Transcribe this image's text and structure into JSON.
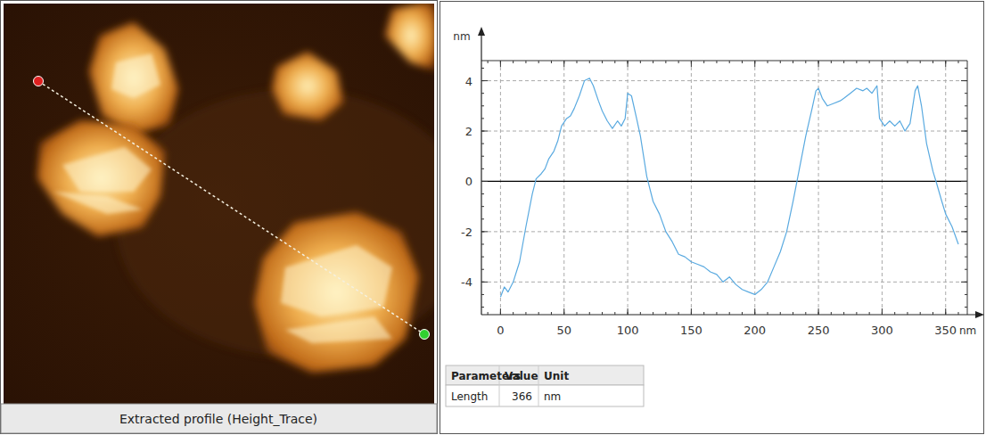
{
  "chart_data": {
    "type": "line",
    "x_label": "nm",
    "y_label": "nm",
    "x": [
      0,
      3,
      6,
      10,
      15,
      20,
      25,
      28,
      32,
      35,
      38,
      42,
      45,
      48,
      52,
      55,
      58,
      62,
      66,
      70,
      73,
      77,
      80,
      84,
      88,
      92,
      95,
      98,
      100,
      103,
      107,
      110,
      115,
      120,
      125,
      130,
      135,
      140,
      145,
      150,
      155,
      160,
      165,
      170,
      175,
      180,
      185,
      190,
      195,
      200,
      205,
      210,
      215,
      220,
      225,
      230,
      235,
      240,
      245,
      248,
      250,
      253,
      257,
      262,
      267,
      270,
      275,
      280,
      285,
      288,
      292,
      296,
      298,
      302,
      306,
      310,
      314,
      318,
      322,
      326,
      328,
      331,
      335,
      340,
      343,
      347,
      350,
      355,
      360
    ],
    "values": [
      -4.6,
      -4.2,
      -4.4,
      -4.0,
      -3.2,
      -1.8,
      -0.5,
      0.1,
      0.3,
      0.5,
      0.9,
      1.2,
      1.6,
      2.2,
      2.5,
      2.6,
      2.9,
      3.4,
      4.0,
      4.1,
      3.8,
      3.2,
      2.8,
      2.4,
      2.1,
      2.4,
      2.2,
      2.5,
      3.5,
      3.4,
      2.5,
      1.8,
      0.2,
      -0.8,
      -1.3,
      -2.0,
      -2.4,
      -2.9,
      -3.0,
      -3.2,
      -3.3,
      -3.4,
      -3.6,
      -3.7,
      -4.0,
      -3.8,
      -4.1,
      -4.3,
      -4.4,
      -4.5,
      -4.3,
      -4.0,
      -3.4,
      -2.8,
      -2.0,
      -0.8,
      0.5,
      1.8,
      2.9,
      3.6,
      3.7,
      3.3,
      3.0,
      3.1,
      3.2,
      3.3,
      3.5,
      3.7,
      3.6,
      3.7,
      3.5,
      3.8,
      2.5,
      2.2,
      2.4,
      2.2,
      2.4,
      2.0,
      2.3,
      3.6,
      3.8,
      3.0,
      1.5,
      0.4,
      -0.1,
      -0.8,
      -1.3,
      -1.8,
      -2.5
    ],
    "color": "#5aaae0",
    "xlim": [
      -15,
      367
    ],
    "ylim": [
      -5.3,
      4.8
    ],
    "xticks": [
      0,
      50,
      100,
      150,
      200,
      250,
      300,
      350
    ],
    "yticks": [
      -4,
      -2,
      0,
      2,
      4
    ],
    "grid": true
  },
  "image": {
    "caption": "Extracted profile (Height_Trace)"
  },
  "table": {
    "columns": [
      "Parameters",
      "Value",
      "Unit"
    ],
    "rows": [
      [
        "Length",
        366,
        "nm"
      ]
    ]
  }
}
